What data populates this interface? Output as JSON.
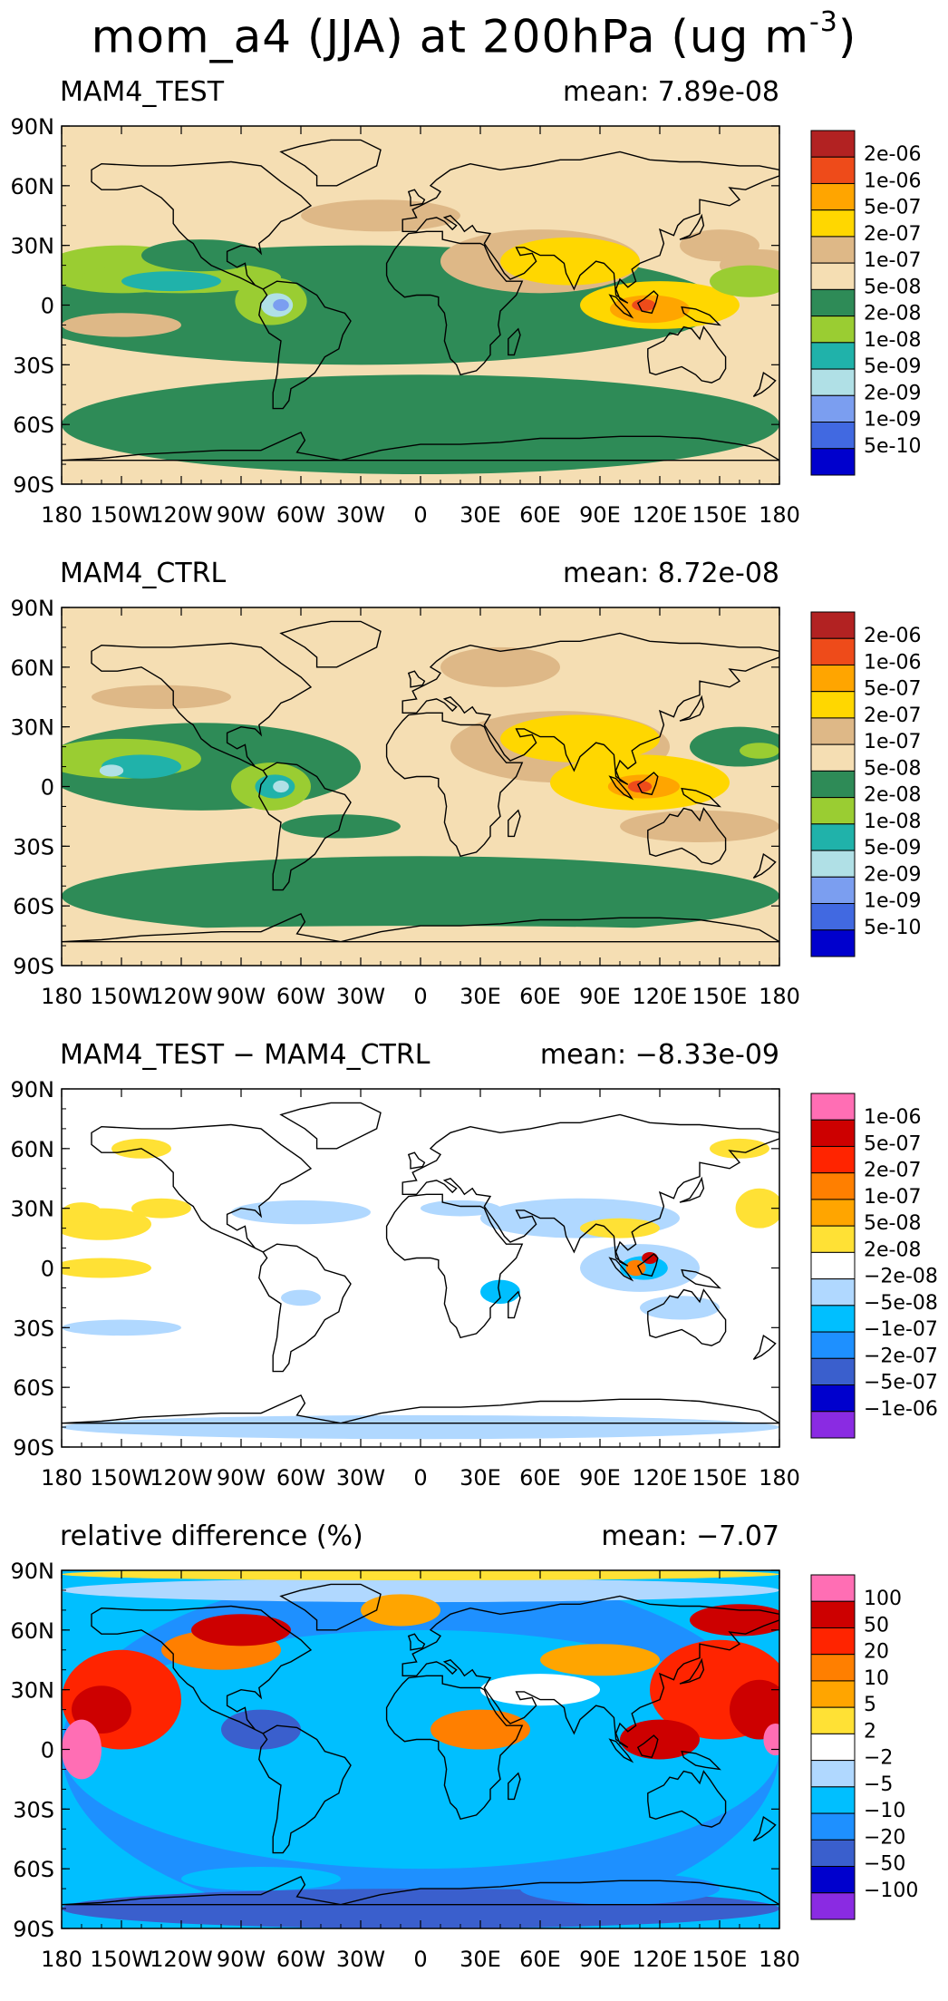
{
  "title": {
    "main": "mom_a4 (JJA) at 200hPa (ug m",
    "exponent": "-3",
    "close": ")"
  },
  "axes": {
    "lon_ticks": [
      "180",
      "150W",
      "120W",
      "90W",
      "60W",
      "30W",
      "0",
      "30E",
      "60E",
      "90E",
      "120E",
      "150E",
      "180"
    ],
    "lat_ticks": [
      "90N",
      "60N",
      "30N",
      "0",
      "30S",
      "60S",
      "90S"
    ]
  },
  "chart_data": [
    {
      "type": "heatmap",
      "title": "MAM4_TEST",
      "mean_label": "mean: 7.89e-08",
      "colorbar": {
        "labels": [
          "2e-06",
          "1e-06",
          "5e-07",
          "2e-07",
          "1e-07",
          "5e-08",
          "2e-08",
          "1e-08",
          "5e-09",
          "2e-09",
          "1e-09",
          "5e-10"
        ],
        "colors": [
          "#b22222",
          "#ee4b1a",
          "#ffa500",
          "#ffd700",
          "#deb887",
          "#f5deb3",
          "#2e8b57",
          "#9acd32",
          "#20b2aa",
          "#b0e0e6",
          "#7b9ef0",
          "#4169e1",
          "#0000cd"
        ]
      }
    },
    {
      "type": "heatmap",
      "title": "MAM4_CTRL",
      "mean_label": "mean: 8.72e-08",
      "colorbar": {
        "labels": [
          "2e-06",
          "1e-06",
          "5e-07",
          "2e-07",
          "1e-07",
          "5e-08",
          "2e-08",
          "1e-08",
          "5e-09",
          "2e-09",
          "1e-09",
          "5e-10"
        ],
        "colors": [
          "#b22222",
          "#ee4b1a",
          "#ffa500",
          "#ffd700",
          "#deb887",
          "#f5deb3",
          "#2e8b57",
          "#9acd32",
          "#20b2aa",
          "#b0e0e6",
          "#7b9ef0",
          "#4169e1",
          "#0000cd"
        ]
      }
    },
    {
      "type": "heatmap",
      "title": "MAM4_TEST − MAM4_CTRL",
      "mean_label": "mean: −8.33e-09",
      "colorbar": {
        "labels": [
          "1e-06",
          "5e-07",
          "2e-07",
          "1e-07",
          "5e-08",
          "2e-08",
          "−2e-08",
          "−5e-08",
          "−1e-07",
          "−2e-07",
          "−5e-07",
          "−1e-06"
        ],
        "colors": [
          "#ff6eb4",
          "#cd0000",
          "#ff2400",
          "#ff7f00",
          "#ffa500",
          "#ffe135",
          "#ffffff",
          "#b0d8ff",
          "#00bfff",
          "#1e90ff",
          "#3a5fcd",
          "#0000cd",
          "#8a2be2"
        ]
      }
    },
    {
      "type": "heatmap",
      "title": "relative difference (%)",
      "mean_label": "mean: −7.07",
      "colorbar": {
        "labels": [
          "100",
          "50",
          "20",
          "10",
          "5",
          "2",
          "−2",
          "−5",
          "−10",
          "−20",
          "−50",
          "−100"
        ],
        "colors": [
          "#ff6eb4",
          "#cd0000",
          "#ff2400",
          "#ff7f00",
          "#ffa500",
          "#ffe135",
          "#ffffff",
          "#b0d8ff",
          "#00bfff",
          "#1e90ff",
          "#3a5fcd",
          "#0000cd",
          "#8a2be2"
        ]
      }
    }
  ]
}
